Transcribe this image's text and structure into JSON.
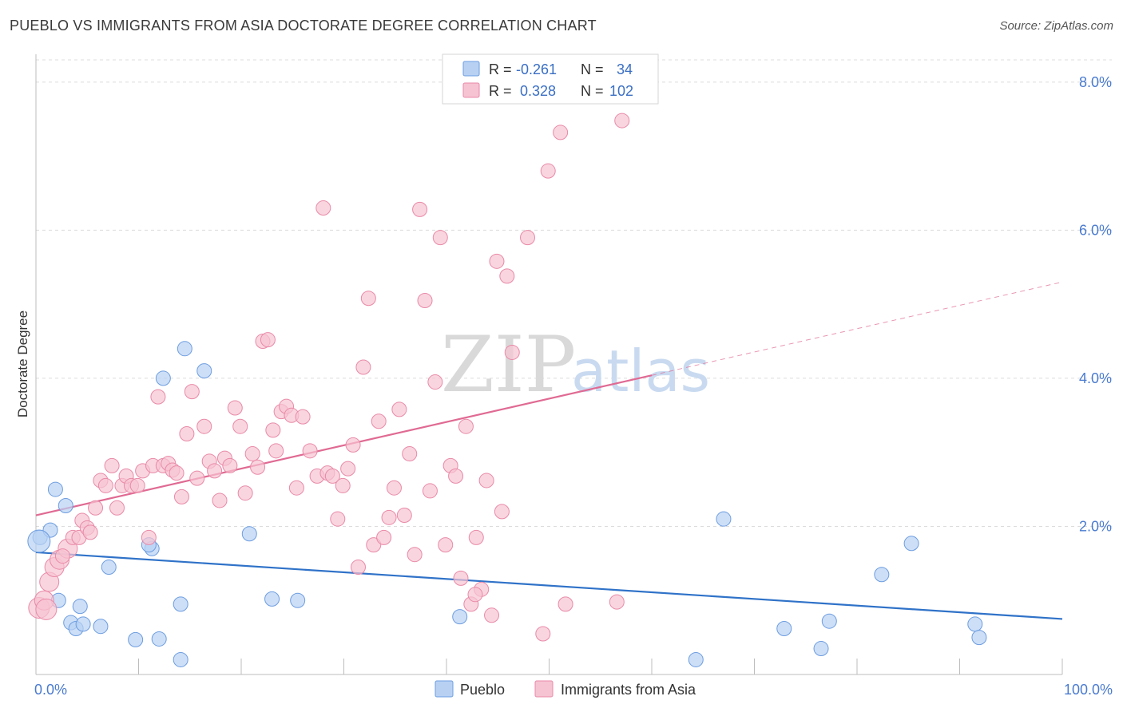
{
  "title": "PUEBLO VS IMMIGRANTS FROM ASIA DOCTORATE DEGREE CORRELATION CHART",
  "source": "Source: ZipAtlas.com",
  "chart_data": {
    "type": "scatter",
    "title": "PUEBLO VS IMMIGRANTS FROM ASIA DOCTORATE DEGREE CORRELATION CHART",
    "xlabel": "",
    "ylabel": "Doctorate Degree",
    "xlim": [
      0,
      100
    ],
    "ylim": [
      0,
      8.3
    ],
    "x_tick_labels": [
      "0.0%",
      "100.0%"
    ],
    "y_ticks": [
      2,
      4,
      6,
      8
    ],
    "y_tick_labels": [
      "2.0%",
      "4.0%",
      "6.0%",
      "8.0%"
    ],
    "grid": "horizontal dashed",
    "legend": {
      "position": "top-center",
      "rows": [
        {
          "r_label": "R =",
          "r_value": "-0.261",
          "n_label": "N =",
          "n_value": "34"
        },
        {
          "r_label": "R =",
          "r_value": "0.328",
          "n_label": "N =",
          "n_value": "102"
        }
      ]
    },
    "watermark": {
      "zip": "ZIP",
      "atlas": "atlas"
    },
    "series": [
      {
        "name": "Pueblo",
        "color": "#6d9de0",
        "fill": "#b8d1f3",
        "trend": {
          "x": [
            0,
            100
          ],
          "y": [
            1.65,
            0.75
          ],
          "solid_to": 100,
          "color": "#2f72c8"
        },
        "points": [
          [
            0.4,
            1.85
          ],
          [
            1.4,
            1.95
          ],
          [
            1.9,
            2.5
          ],
          [
            2.9,
            2.28
          ],
          [
            2.2,
            1.0
          ],
          [
            3.4,
            0.7
          ],
          [
            3.9,
            0.62
          ],
          [
            4.3,
            0.92
          ],
          [
            4.6,
            0.68
          ],
          [
            6.3,
            0.65
          ],
          [
            7.1,
            1.45
          ],
          [
            9.7,
            0.47
          ],
          [
            11.3,
            1.7
          ],
          [
            11.0,
            1.75
          ],
          [
            12.0,
            0.48
          ],
          [
            12.4,
            4.0
          ],
          [
            14.1,
            0.95
          ],
          [
            14.1,
            0.2
          ],
          [
            14.5,
            4.4
          ],
          [
            16.4,
            4.1
          ],
          [
            20.8,
            1.9
          ],
          [
            23.0,
            1.02
          ],
          [
            25.5,
            1.0
          ],
          [
            41.3,
            0.78
          ],
          [
            64.3,
            0.2
          ],
          [
            67.0,
            2.1
          ],
          [
            72.9,
            0.62
          ],
          [
            76.5,
            0.35
          ],
          [
            77.3,
            0.72
          ],
          [
            82.4,
            1.35
          ],
          [
            85.3,
            1.77
          ],
          [
            91.5,
            0.68
          ],
          [
            91.9,
            0.5
          ],
          [
            0.3,
            1.8
          ]
        ]
      },
      {
        "name": "Immigrants from Asia",
        "color": "#e98aa8",
        "fill": "#f6c3d2",
        "trend": {
          "x": [
            0,
            100
          ],
          "y": [
            2.15,
            5.3
          ],
          "solid_to": 60,
          "color": "#e06a93"
        },
        "points": [
          [
            0.3,
            0.9
          ],
          [
            0.8,
            1.0
          ],
          [
            1.3,
            1.25
          ],
          [
            1.8,
            1.45
          ],
          [
            2.3,
            1.55
          ],
          [
            3.1,
            1.7
          ],
          [
            3.6,
            1.85
          ],
          [
            4.2,
            1.85
          ],
          [
            4.5,
            2.08
          ],
          [
            5.0,
            1.98
          ],
          [
            5.3,
            1.92
          ],
          [
            5.8,
            2.25
          ],
          [
            6.3,
            2.62
          ],
          [
            6.8,
            2.55
          ],
          [
            7.4,
            2.82
          ],
          [
            7.9,
            2.25
          ],
          [
            8.4,
            2.55
          ],
          [
            8.8,
            2.68
          ],
          [
            9.3,
            2.55
          ],
          [
            9.9,
            2.55
          ],
          [
            10.4,
            2.75
          ],
          [
            11.0,
            1.85
          ],
          [
            11.4,
            2.82
          ],
          [
            11.9,
            3.75
          ],
          [
            12.4,
            2.82
          ],
          [
            12.9,
            2.85
          ],
          [
            13.3,
            2.76
          ],
          [
            13.7,
            2.72
          ],
          [
            14.2,
            2.4
          ],
          [
            14.7,
            3.25
          ],
          [
            15.2,
            3.82
          ],
          [
            15.7,
            2.65
          ],
          [
            16.4,
            3.35
          ],
          [
            16.9,
            2.88
          ],
          [
            17.4,
            2.75
          ],
          [
            17.9,
            2.35
          ],
          [
            18.4,
            2.92
          ],
          [
            18.9,
            2.82
          ],
          [
            19.4,
            3.6
          ],
          [
            19.9,
            3.35
          ],
          [
            20.4,
            2.45
          ],
          [
            21.1,
            2.98
          ],
          [
            21.6,
            2.8
          ],
          [
            22.1,
            4.5
          ],
          [
            22.6,
            4.52
          ],
          [
            23.1,
            3.3
          ],
          [
            23.4,
            3.02
          ],
          [
            23.9,
            3.55
          ],
          [
            24.4,
            3.62
          ],
          [
            24.9,
            3.5
          ],
          [
            25.4,
            2.52
          ],
          [
            26.0,
            3.48
          ],
          [
            26.7,
            3.02
          ],
          [
            27.4,
            2.68
          ],
          [
            28.0,
            6.3
          ],
          [
            28.4,
            2.72
          ],
          [
            28.9,
            2.68
          ],
          [
            29.4,
            2.1
          ],
          [
            29.9,
            2.55
          ],
          [
            30.4,
            2.78
          ],
          [
            30.9,
            3.1
          ],
          [
            31.4,
            1.45
          ],
          [
            31.9,
            4.15
          ],
          [
            32.4,
            5.08
          ],
          [
            32.9,
            1.75
          ],
          [
            33.4,
            3.42
          ],
          [
            33.9,
            1.85
          ],
          [
            34.4,
            2.12
          ],
          [
            34.9,
            2.52
          ],
          [
            35.4,
            3.58
          ],
          [
            35.9,
            2.15
          ],
          [
            36.4,
            2.98
          ],
          [
            36.9,
            1.62
          ],
          [
            37.4,
            6.28
          ],
          [
            37.9,
            5.05
          ],
          [
            38.4,
            2.48
          ],
          [
            38.9,
            3.95
          ],
          [
            39.4,
            5.9
          ],
          [
            39.9,
            1.75
          ],
          [
            40.4,
            2.82
          ],
          [
            40.9,
            2.68
          ],
          [
            41.4,
            1.3
          ],
          [
            41.9,
            3.35
          ],
          [
            42.4,
            0.95
          ],
          [
            42.9,
            1.85
          ],
          [
            43.4,
            1.15
          ],
          [
            43.9,
            2.62
          ],
          [
            44.4,
            0.8
          ],
          [
            44.9,
            5.58
          ],
          [
            45.4,
            2.2
          ],
          [
            45.9,
            5.38
          ],
          [
            46.4,
            4.35
          ],
          [
            47.9,
            5.9
          ],
          [
            49.4,
            0.55
          ],
          [
            49.9,
            6.8
          ],
          [
            51.1,
            7.32
          ],
          [
            51.6,
            0.95
          ],
          [
            56.6,
            0.98
          ],
          [
            57.1,
            7.48
          ],
          [
            42.8,
            1.08
          ],
          [
            2.6,
            1.6
          ],
          [
            1.0,
            0.88
          ]
        ]
      }
    ]
  },
  "bottom_legend": [
    {
      "label": "Pueblo"
    },
    {
      "label": "Immigrants from Asia"
    }
  ]
}
